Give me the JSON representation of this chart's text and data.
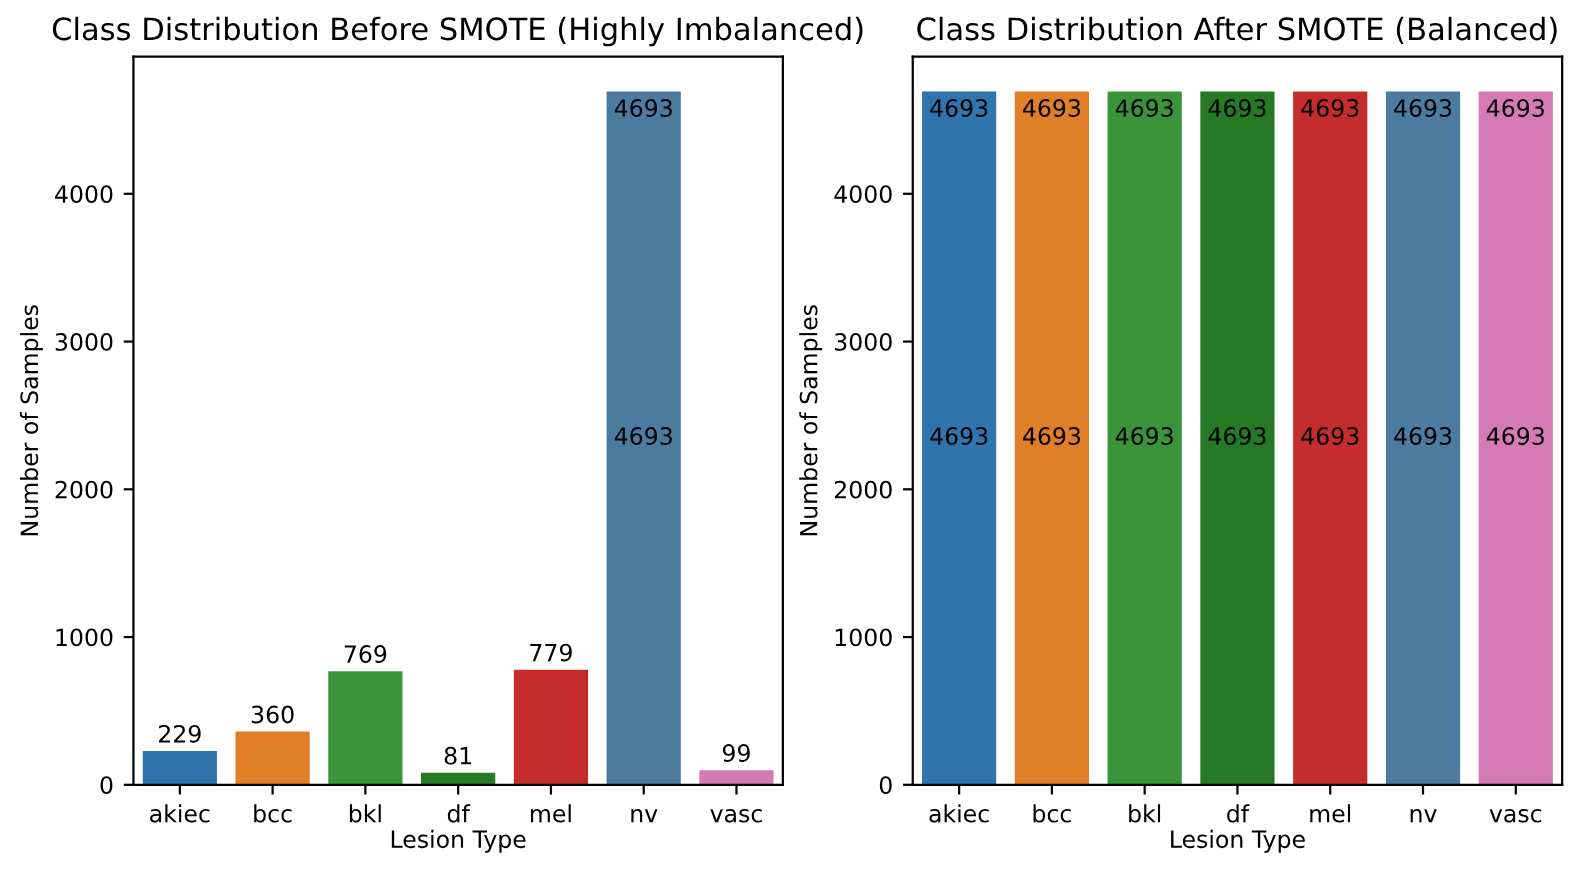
{
  "chart_data": [
    {
      "type": "bar",
      "title": "Class Distribution Before SMOTE (Highly Imbalanced)",
      "xlabel": "Lesion Type",
      "ylabel": "Number of Samples",
      "categories": [
        "akiec",
        "bcc",
        "bkl",
        "df",
        "mel",
        "nv",
        "vasc"
      ],
      "values": [
        229,
        360,
        769,
        81,
        779,
        4693,
        99
      ],
      "colors": [
        "#2f74ad",
        "#e07f27",
        "#3a943a",
        "#267a26",
        "#c52d2d",
        "#4c7ba0",
        "#d57ab5"
      ],
      "ylim": [
        0,
        4928
      ],
      "yticks": [
        0,
        1000,
        2000,
        3000,
        4000
      ],
      "data_labels": true,
      "annotations": [
        "4693"
      ]
    },
    {
      "type": "bar",
      "title": "Class Distribution After SMOTE (Balanced)",
      "xlabel": "Lesion Type",
      "ylabel": "Number of Samples",
      "categories": [
        "akiec",
        "bcc",
        "bkl",
        "df",
        "mel",
        "nv",
        "vasc"
      ],
      "values": [
        4693,
        4693,
        4693,
        4693,
        4693,
        4693,
        4693
      ],
      "colors": [
        "#2f74ad",
        "#e07f27",
        "#3a943a",
        "#267a26",
        "#c52d2d",
        "#4c7ba0",
        "#d57ab5"
      ],
      "ylim": [
        0,
        4928
      ],
      "yticks": [
        0,
        1000,
        2000,
        3000,
        4000
      ],
      "data_labels": true,
      "annotations": [
        "4693",
        "4693",
        "4693",
        "4693",
        "4693",
        "4693",
        "4693"
      ]
    }
  ]
}
